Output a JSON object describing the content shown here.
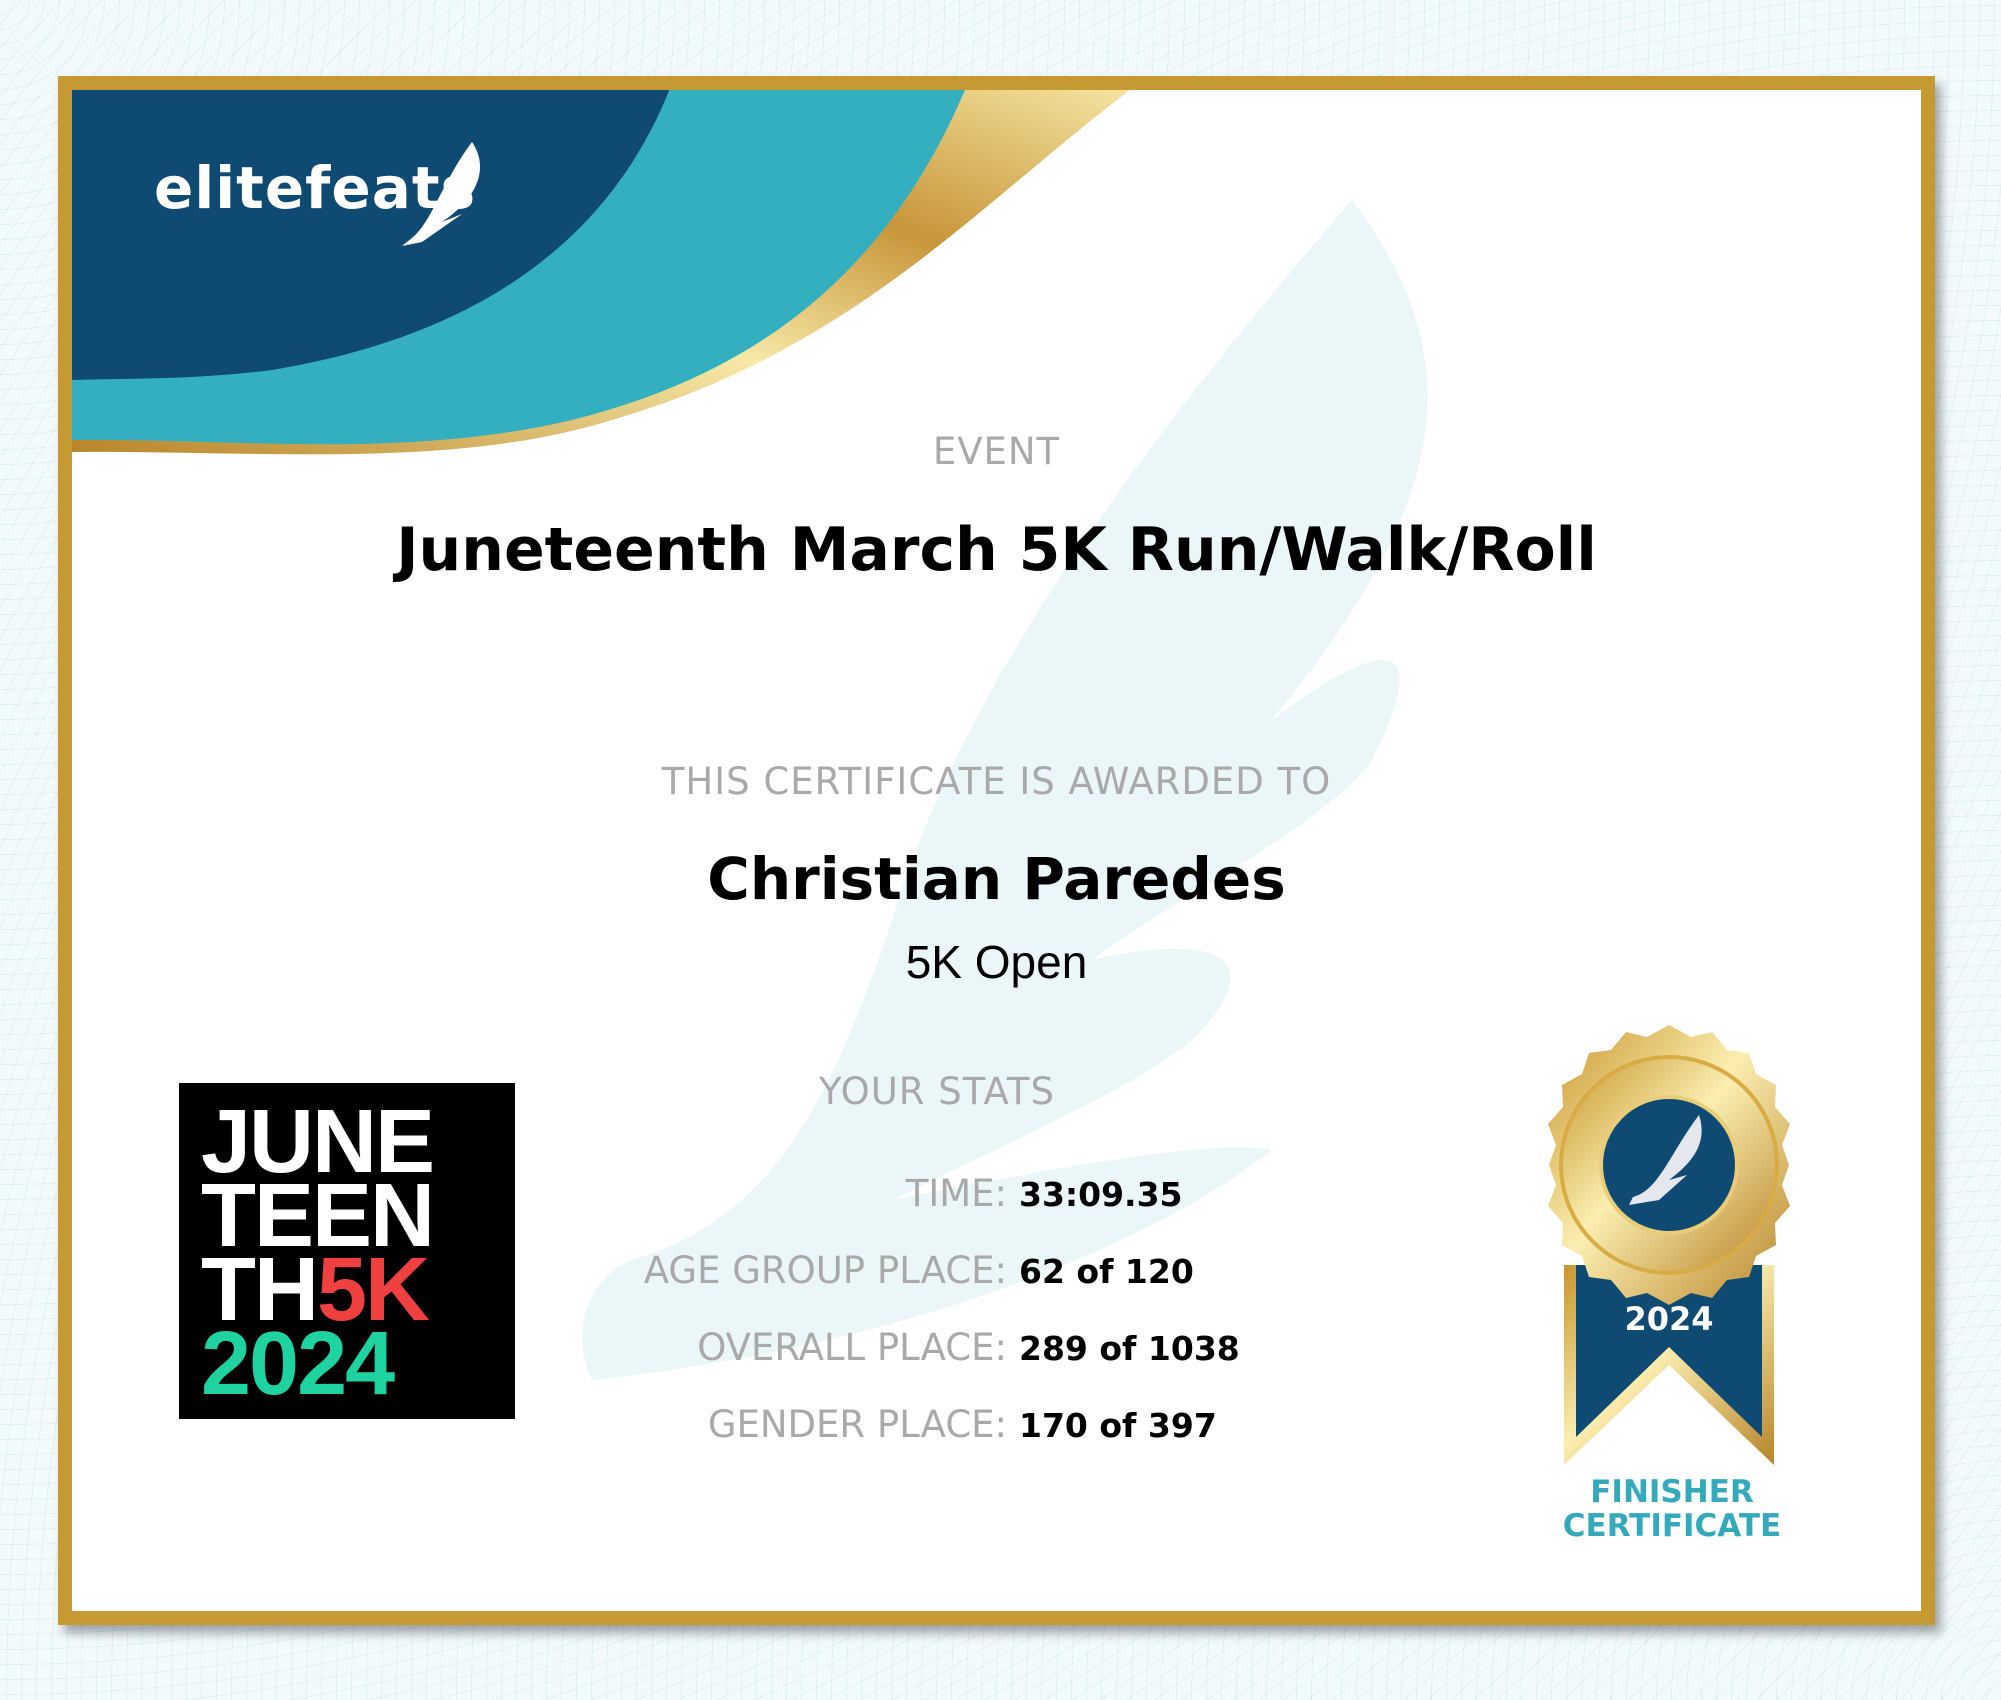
{
  "brand": {
    "name": "elitefeats",
    "colors": {
      "navy": "#0f4a73",
      "teal": "#33afc0",
      "gold": "#c59a32"
    }
  },
  "event": {
    "label": "EVENT",
    "title": "Juneteenth March 5K Run/Walk/Roll"
  },
  "award": {
    "label": "THIS CERTIFICATE IS AWARDED TO",
    "name": "Christian Paredes",
    "division": "5K Open"
  },
  "stats": {
    "title": "YOUR STATS",
    "rows": [
      {
        "label": "TIME:",
        "value": "33:09.35"
      },
      {
        "label": "AGE GROUP PLACE:",
        "value": "62 of 120"
      },
      {
        "label": "OVERALL PLACE:",
        "value": "289 of 1038"
      },
      {
        "label": "GENDER PLACE:",
        "value": "170 of 397"
      }
    ]
  },
  "event_logo": {
    "lines": [
      "JUNE",
      "TEEN",
      "TH",
      "5K",
      "2024"
    ],
    "colors": {
      "white": "#ffffff",
      "red": "#f04040",
      "green": "#1fd3a0"
    }
  },
  "medal": {
    "year": "2024",
    "icon": "winged-foot-icon"
  },
  "badge": {
    "line1": "FINISHER",
    "line2": "CERTIFICATE"
  }
}
